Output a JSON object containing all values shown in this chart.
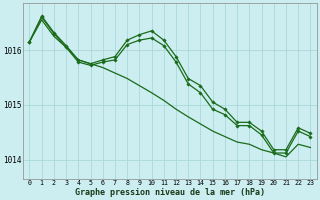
{
  "xlabel": "Graphe pression niveau de la mer (hPa)",
  "bg_color": "#cceef0",
  "grid_color": "#aad8da",
  "line_color": "#1a6b1a",
  "marker_color": "#1a6b1a",
  "x_ticks": [
    0,
    1,
    2,
    3,
    4,
    5,
    6,
    7,
    8,
    9,
    10,
    11,
    12,
    13,
    14,
    15,
    16,
    17,
    18,
    19,
    20,
    21,
    22,
    23
  ],
  "ylim": [
    1013.65,
    1016.85
  ],
  "yticks": [
    1014,
    1015,
    1016
  ],
  "line1_straight": [
    1016.15,
    1016.55,
    1016.25,
    1016.05,
    1015.82,
    1015.75,
    1015.68,
    1015.58,
    1015.48,
    1015.35,
    1015.22,
    1015.08,
    1014.92,
    1014.78,
    1014.65,
    1014.52,
    1014.42,
    1014.32,
    1014.28,
    1014.18,
    1014.12,
    1014.05,
    1014.28,
    1014.22
  ],
  "line2_wiggly1": [
    1016.15,
    1016.6,
    1016.3,
    1016.05,
    1015.78,
    1015.72,
    1015.78,
    1015.82,
    1016.1,
    1016.18,
    1016.22,
    1016.08,
    1015.78,
    1015.38,
    1015.22,
    1014.92,
    1014.82,
    1014.62,
    1014.62,
    1014.45,
    1014.12,
    1014.12,
    1014.52,
    1014.42
  ],
  "line3_wiggly2": [
    1016.15,
    1016.62,
    1016.32,
    1016.08,
    1015.82,
    1015.75,
    1015.82,
    1015.88,
    1016.18,
    1016.28,
    1016.35,
    1016.18,
    1015.88,
    1015.48,
    1015.35,
    1015.05,
    1014.92,
    1014.68,
    1014.68,
    1014.52,
    1014.18,
    1014.18,
    1014.58,
    1014.48
  ]
}
